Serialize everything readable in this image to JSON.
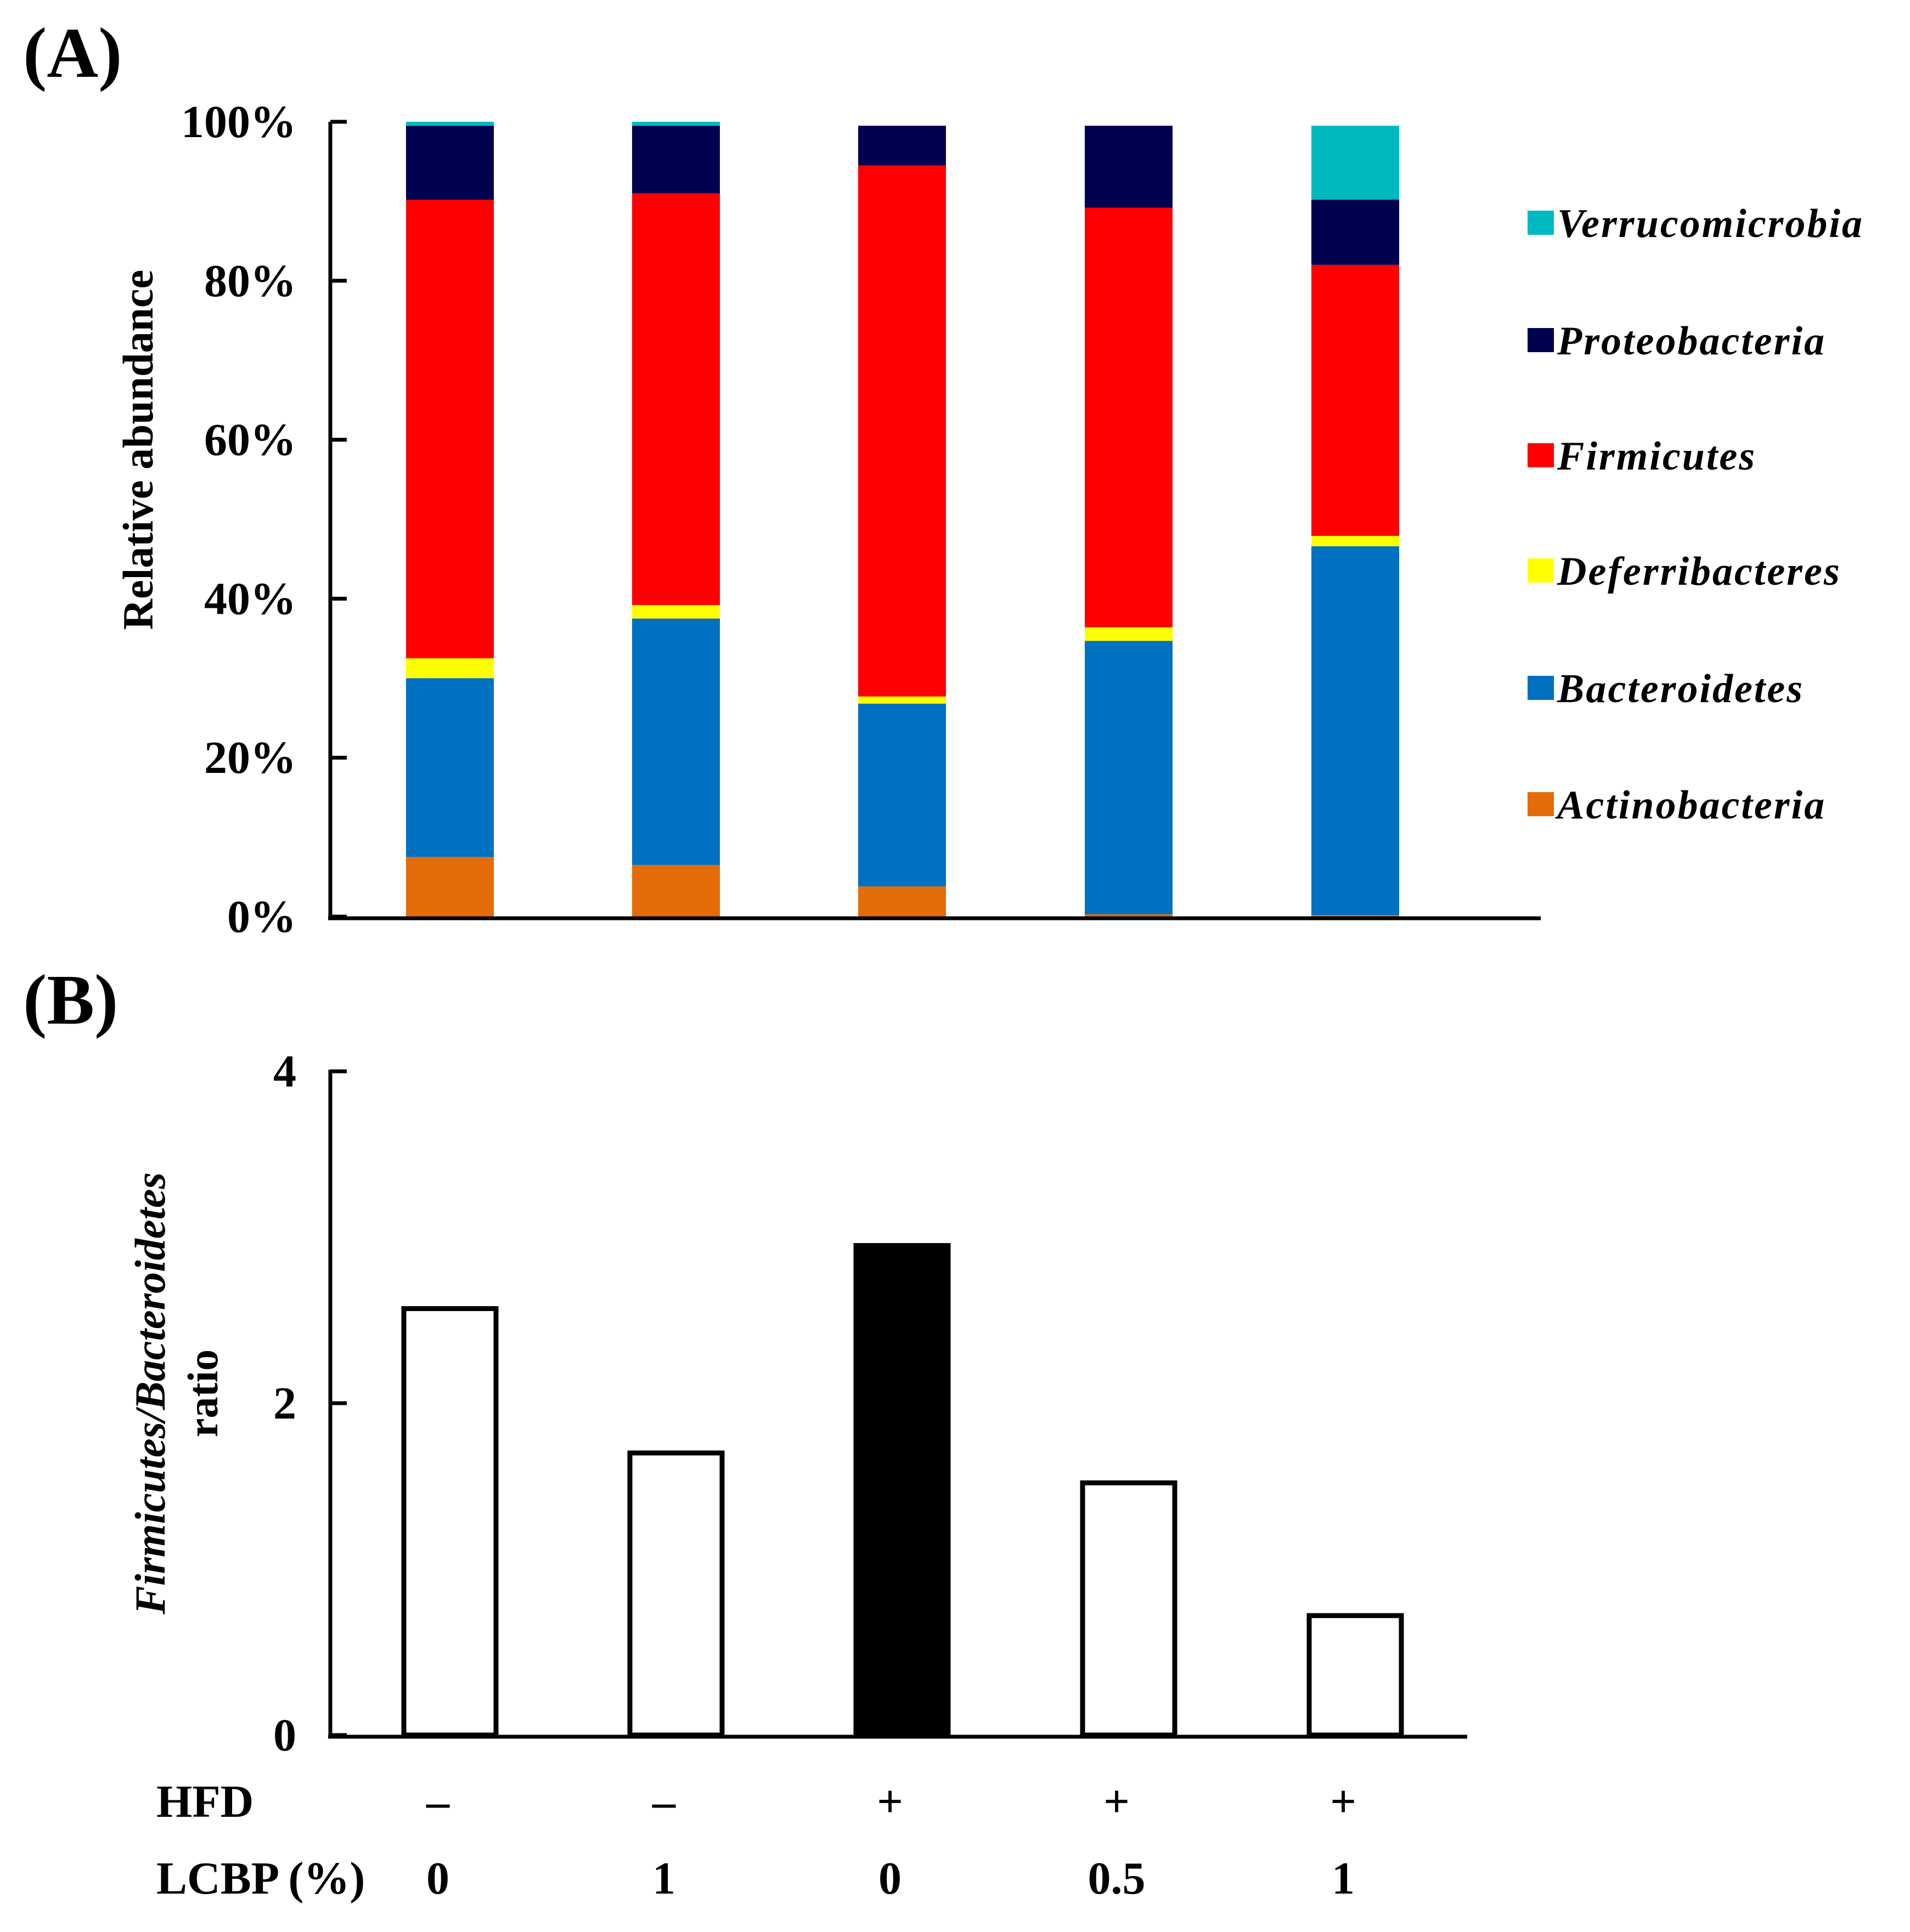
{
  "chart_data": [
    {
      "panel": "(A)",
      "type": "bar",
      "stacked": true,
      "ylabel": "Relative abundance",
      "ylim": [
        0,
        100
      ],
      "yticks": [
        "0%",
        "20%",
        "40%",
        "60%",
        "80%",
        "100%"
      ],
      "ytick_values": [
        0,
        20,
        40,
        60,
        80,
        100
      ],
      "legend_position": "right",
      "series": [
        {
          "name": "Actinobacteria",
          "color": "#e36c09",
          "values": [
            7.5,
            6.5,
            3.8,
            0.3,
            0.2
          ]
        },
        {
          "name": "Bacteroidetes",
          "color": "#0070c0",
          "values": [
            22.5,
            31.0,
            23.0,
            34.4,
            46.4
          ]
        },
        {
          "name": "Deferribacteres",
          "color": "#ffff00",
          "values": [
            2.5,
            1.7,
            0.9,
            1.7,
            1.3
          ]
        },
        {
          "name": "Firmicutes",
          "color": "#ff0000",
          "values": [
            57.7,
            51.8,
            66.8,
            52.8,
            34.1
          ]
        },
        {
          "name": "Proteobacteria",
          "color": "#000050",
          "values": [
            9.3,
            8.5,
            5.0,
            10.3,
            8.2
          ]
        },
        {
          "name": "Verrucomicrobia",
          "color": "#00b8c0",
          "values": [
            0.5,
            0.5,
            0.0,
            0.0,
            9.3
          ]
        }
      ],
      "legend_order": [
        "Verrucomicrobia",
        "Proteobacteria",
        "Firmicutes",
        "Deferribacteres",
        "Bacteroidetes",
        "Actinobacteria"
      ]
    },
    {
      "panel": "(B)",
      "type": "bar",
      "ylabel_italic": "Firmicutes/Bacteroidetes",
      "ylabel_plain": "ratio",
      "ylim": [
        0,
        4
      ],
      "yticks": [
        "0",
        "2",
        "4"
      ],
      "ytick_values": [
        0,
        2,
        4
      ],
      "values": [
        2.57,
        1.7,
        2.95,
        1.52,
        0.72
      ],
      "fill_colors": [
        "#ffffff",
        "#ffffff",
        "#000000",
        "#ffffff",
        "#ffffff"
      ]
    }
  ],
  "conditions": {
    "hfd_label": "HFD",
    "hfd": [
      "–",
      "–",
      "+",
      "+",
      "+"
    ],
    "lcbp_label": "LCBP (%)",
    "lcbp": [
      "0",
      "1",
      "0",
      "0.5",
      "1"
    ]
  }
}
